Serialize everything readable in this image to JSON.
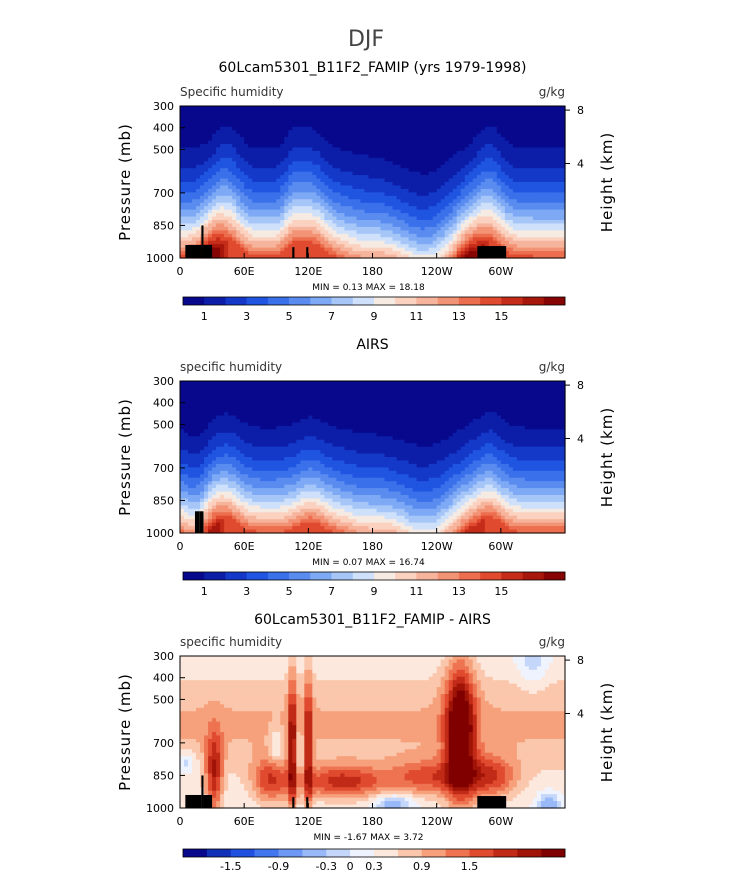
{
  "page_title": "DJF",
  "colors": {
    "sequential": [
      "#08088c",
      "#0c1ea8",
      "#1438c8",
      "#1f55e0",
      "#3a70ea",
      "#5a8cf0",
      "#7ea9f5",
      "#a6c6f8",
      "#cfe0fa",
      "#f6ebe3",
      "#fbd1c0",
      "#f7b49c",
      "#f39375",
      "#ec6e4e",
      "#e04a2f",
      "#c52c19",
      "#a8170c",
      "#860404"
    ],
    "difference": [
      "#08088c",
      "#1030b8",
      "#2050e0",
      "#4276ee",
      "#6c97f4",
      "#98b8f8",
      "#c4d6fa",
      "#eef3fd",
      "#fde8de",
      "#fbc7ac",
      "#f6a07c",
      "#ee7350",
      "#e04a2f",
      "#c02a16",
      "#a01408",
      "#800000"
    ],
    "land": "#000000"
  },
  "chart_data": [
    {
      "type": "heatmap",
      "name": "model",
      "title": "60Lcam5301_B11F2_FAMIP (yrs 1979-1998)",
      "left_label": "Specific humidity",
      "right_label": "g/kg",
      "ylabel": "Pressure (mb)",
      "y2label": "Height (km)",
      "y_ticks": [
        "300",
        "400",
        "500",
        "700",
        "850",
        "1000"
      ],
      "y_values": [
        300,
        400,
        500,
        700,
        850,
        1000
      ],
      "y2_ticks": [
        "8",
        "4"
      ],
      "y2_values": [
        8,
        4
      ],
      "x_ticks": [
        "0",
        "60E",
        "120E",
        "180",
        "120W",
        "60W"
      ],
      "x_values": [
        0,
        60,
        120,
        180,
        240,
        300
      ],
      "xlim": [
        0,
        360
      ],
      "ylim": [
        1000,
        300
      ],
      "stats": "MIN =    0.13   MAX =   18.18",
      "min": 0.13,
      "max": 18.18,
      "colorbar_labels": [
        "1",
        "3",
        "5",
        "7",
        "9",
        "11",
        "13",
        "15"
      ],
      "colorbar_values": [
        1,
        3,
        5,
        7,
        9,
        11,
        13,
        15
      ],
      "palette": "sequential",
      "field": "model"
    },
    {
      "type": "heatmap",
      "name": "obs",
      "title": "AIRS",
      "left_label": "specific humidity",
      "right_label": "g/kg",
      "ylabel": "Pressure (mb)",
      "y2label": "Height (km)",
      "y_ticks": [
        "300",
        "400",
        "500",
        "700",
        "850",
        "1000"
      ],
      "y_values": [
        300,
        400,
        500,
        700,
        850,
        1000
      ],
      "y2_ticks": [
        "8",
        "4"
      ],
      "y2_values": [
        8,
        4
      ],
      "x_ticks": [
        "0",
        "60E",
        "120E",
        "180",
        "120W",
        "60W"
      ],
      "x_values": [
        0,
        60,
        120,
        180,
        240,
        300
      ],
      "xlim": [
        0,
        360
      ],
      "ylim": [
        1000,
        300
      ],
      "stats": "MIN =    0.07   MAX =   16.74",
      "min": 0.07,
      "max": 16.74,
      "colorbar_labels": [
        "1",
        "3",
        "5",
        "7",
        "9",
        "11",
        "13",
        "15"
      ],
      "colorbar_values": [
        1,
        3,
        5,
        7,
        9,
        11,
        13,
        15
      ],
      "palette": "sequential",
      "field": "obs"
    },
    {
      "type": "heatmap",
      "name": "difference",
      "title": "60Lcam5301_B11F2_FAMIP - AIRS",
      "left_label": "specific humidity",
      "right_label": "g/kg",
      "ylabel": "Pressure (mb)",
      "y2label": "Height (km)",
      "y_ticks": [
        "300",
        "400",
        "500",
        "700",
        "850",
        "1000"
      ],
      "y_values": [
        300,
        400,
        500,
        700,
        850,
        1000
      ],
      "y2_ticks": [
        "8",
        "4"
      ],
      "y2_values": [
        8,
        4
      ],
      "x_ticks": [
        "0",
        "60E",
        "120E",
        "180",
        "120W",
        "60W"
      ],
      "x_values": [
        0,
        60,
        120,
        180,
        240,
        300
      ],
      "xlim": [
        0,
        360
      ],
      "ylim": [
        1000,
        300
      ],
      "stats": "MIN =  -1.67   MAX =   3.72",
      "min": -1.67,
      "max": 3.72,
      "colorbar_labels": [
        "-1.5",
        "-0.9",
        "-0.3",
        "0",
        "0.3",
        "0.9",
        "1.5"
      ],
      "colorbar_values": [
        -1.5,
        -0.9,
        -0.3,
        0,
        0.3,
        0.9,
        1.5
      ],
      "palette": "difference",
      "field": "diff"
    }
  ]
}
